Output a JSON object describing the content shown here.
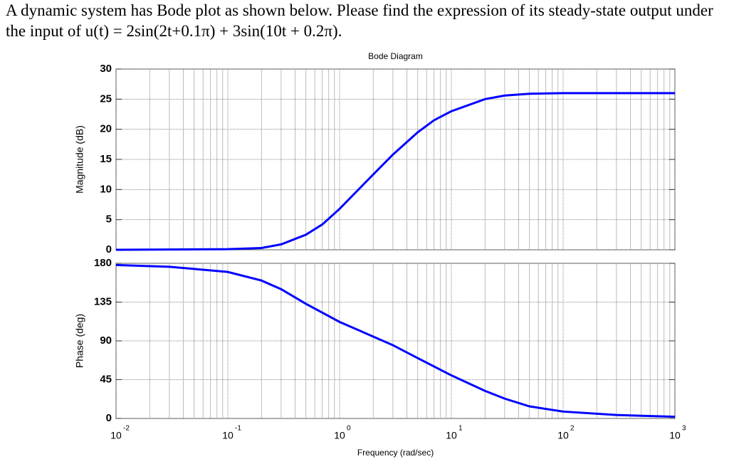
{
  "question": "A dynamic system has Bode plot as shown below. Please find the expression of its steady-state output under the input of u(t) = 2sin(2t+0.1π) + 3sin(10t + 0.2π).",
  "chart_data": [
    {
      "type": "line",
      "title": "Bode Diagram",
      "ylabel": "Magnitude (dB)",
      "xscale": "log",
      "grid": true,
      "minor_grid": true,
      "x": [
        0.01,
        0.1,
        0.2,
        0.3,
        0.5,
        0.7,
        1,
        2,
        3,
        5,
        7,
        10,
        20,
        30,
        50,
        100,
        1000
      ],
      "series": [
        {
          "color": "#0000ff",
          "values": [
            0,
            0.1,
            0.3,
            0.9,
            2.5,
            4.2,
            6.8,
            12.5,
            15.8,
            19.5,
            21.5,
            23,
            25,
            25.6,
            25.9,
            26,
            26
          ]
        }
      ],
      "xlim": [
        0.01,
        1000
      ],
      "xticks": [
        0.01,
        0.1,
        1,
        10,
        100,
        1000
      ],
      "ylim": [
        0,
        30
      ],
      "yticks": [
        0,
        5,
        10,
        15,
        20,
        25,
        30
      ]
    },
    {
      "type": "line",
      "ylabel": "Phase (deg)",
      "xlabel": "Frequency (rad/sec)",
      "xscale": "log",
      "grid": true,
      "minor_grid": true,
      "x": [
        0.01,
        0.03,
        0.1,
        0.2,
        0.3,
        0.5,
        1,
        2,
        3,
        5,
        10,
        20,
        30,
        50,
        100,
        300,
        1000
      ],
      "series": [
        {
          "color": "#0000ff",
          "values": [
            178,
            176,
            170,
            160,
            150,
            133,
            112,
            95,
            85,
            70,
            50,
            32,
            23,
            14,
            8,
            4,
            2
          ]
        }
      ],
      "xlim": [
        0.01,
        1000
      ],
      "xticks": [
        {
          "value": 0.01,
          "label": "10",
          "superscript": "-2"
        },
        {
          "value": 0.1,
          "label": "10",
          "superscript": "-1"
        },
        {
          "value": 1,
          "label": "10",
          "superscript": "0"
        },
        {
          "value": 10,
          "label": "10",
          "superscript": "1"
        },
        {
          "value": 100,
          "label": "10",
          "superscript": "2"
        },
        {
          "value": 1000,
          "label": "10",
          "superscript": "3"
        }
      ],
      "ylim": [
        0,
        180
      ],
      "yticks": [
        0,
        45,
        90,
        135,
        180
      ]
    }
  ]
}
